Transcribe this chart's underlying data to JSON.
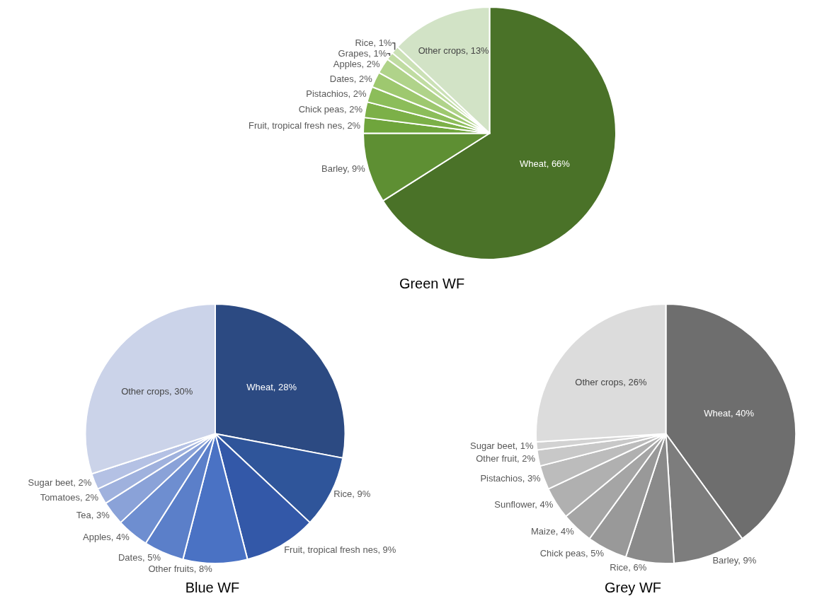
{
  "chart_data": [
    {
      "type": "pie",
      "title": "Green WF",
      "legend": false,
      "categories": [
        "Wheat",
        "Barley",
        "Fruit, tropical fresh nes",
        "Chick peas",
        "Pistachios",
        "Dates",
        "Apples",
        "Grapes",
        "Rice",
        "Other crops"
      ],
      "values": [
        66,
        9,
        2,
        2,
        2,
        2,
        2,
        1,
        1,
        13
      ],
      "colors": [
        "#4a7228",
        "#5e8f33",
        "#6fa53c",
        "#7cb048",
        "#8cbd5a",
        "#9ec86f",
        "#b0d38a",
        "#c0dca2",
        "#cbe1b6",
        "#d2e3c6"
      ],
      "value_labels": [
        "66%",
        "9%",
        "2%",
        "2%",
        "2%",
        "2%",
        "2%",
        "1%",
        "1%",
        "13%"
      ]
    },
    {
      "type": "pie",
      "title": "Blue WF",
      "legend": false,
      "categories": [
        "Wheat",
        "Rice",
        "Fruit, tropical fresh nes",
        "Other fruits",
        "Dates",
        "Apples",
        "Tea",
        "Tomatoes",
        "Sugar beet",
        "Other crops"
      ],
      "values": [
        28,
        9,
        9,
        8,
        5,
        4,
        3,
        2,
        2,
        30
      ],
      "colors": [
        "#2c4a82",
        "#2f559a",
        "#3358a8",
        "#4a72c4",
        "#5b7fc9",
        "#6e8ed0",
        "#8aa2d8",
        "#9fb1dd",
        "#b4c1e4",
        "#cbd3e9"
      ],
      "value_labels": [
        "28%",
        "9%",
        "9%",
        "8%",
        "5%",
        "4%",
        "3%",
        "2%",
        "2%",
        "30%"
      ]
    },
    {
      "type": "pie",
      "title": "Grey WF",
      "legend": false,
      "categories": [
        "Wheat",
        "Barley",
        "Rice",
        "Chick peas",
        "Maize",
        "Sunflower",
        "Pistachios",
        "Other fruit",
        "Sugar beet",
        "Other crops"
      ],
      "values": [
        40,
        9,
        6,
        5,
        4,
        4,
        3,
        2,
        1,
        26
      ],
      "colors": [
        "#6e6e6e",
        "#7d7d7d",
        "#8a8a8a",
        "#999999",
        "#a5a5a5",
        "#b0b0b0",
        "#bcbcbc",
        "#c8c8c8",
        "#d2d2d2",
        "#dcdcdc"
      ],
      "value_labels": [
        "40%",
        "9%",
        "6%",
        "5%",
        "4%",
        "4%",
        "3%",
        "2%",
        "1%",
        "26%"
      ]
    }
  ]
}
